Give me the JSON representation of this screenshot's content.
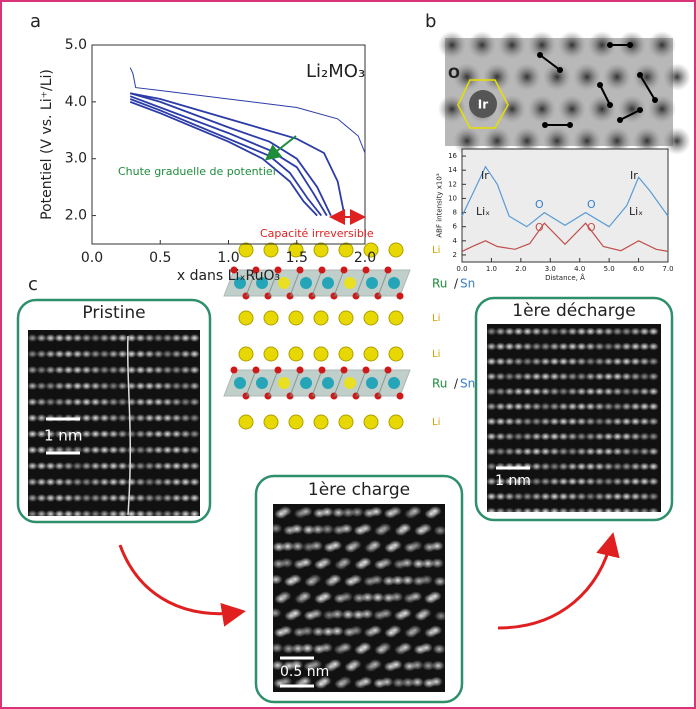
{
  "figure": {
    "panel_labels": [
      "a",
      "b",
      "c"
    ],
    "pristine": {
      "title": "Pristine",
      "scale": "1 nm"
    },
    "charge": {
      "title": "1ère charge",
      "scale": "0.5 nm"
    },
    "discharge": {
      "title": "1ère décharge",
      "scale": "1 nm"
    },
    "structure": {
      "li": "Li",
      "ru": "Ru",
      "slash": "/",
      "sn": "Sn"
    }
  },
  "chart_data": [
    {
      "type": "line",
      "title": "Li₂MO₃",
      "x_label": "x dans LiₓRuO₃",
      "y_label": "Potentiel (V vs. Li⁺/Li)",
      "xlim": [
        0,
        2.0
      ],
      "ylim": [
        1.5,
        5.0
      ],
      "xticks": [
        {
          "value": 0,
          "label": "0.0"
        },
        {
          "value": 0.5,
          "label": "0.5"
        },
        {
          "value": 1,
          "label": "1.0"
        },
        {
          "value": 1.5,
          "label": "1.5"
        },
        {
          "value": 2,
          "label": "2.0"
        }
      ],
      "yticks": [
        {
          "value": 2,
          "label": "2.0"
        },
        {
          "value": 3,
          "label": "3.0"
        },
        {
          "value": 4,
          "label": "4.0"
        },
        {
          "value": 5,
          "label": "5.0"
        }
      ],
      "annotations": [
        "Chute graduelle de potentiel",
        "Capacité irreversible"
      ],
      "series": [
        {
          "color": "#2b3ba8",
          "x": [
            0.28,
            0.3,
            0.32,
            0.5,
            1.0,
            1.5,
            1.8,
            1.95,
            2.0
          ],
          "values": [
            4.6,
            4.5,
            4.25,
            4.2,
            4.05,
            3.9,
            3.7,
            3.4,
            3.1
          ]
        },
        {
          "color": "#2b3ba8",
          "x": [
            0.28,
            0.5,
            1.0,
            1.5,
            1.7,
            1.8,
            1.85
          ],
          "values": [
            4.15,
            4.05,
            3.7,
            3.35,
            3.1,
            2.6,
            2.0
          ]
        },
        {
          "color": "#2b3ba8",
          "x": [
            0.28,
            0.5,
            1.0,
            1.3,
            1.5,
            1.65,
            1.75
          ],
          "values": [
            4.15,
            4.0,
            3.55,
            3.3,
            3.0,
            2.5,
            2.0
          ]
        },
        {
          "color": "#2b3ba8",
          "x": [
            0.28,
            0.5,
            1.0,
            1.3,
            1.5,
            1.62,
            1.72
          ],
          "values": [
            4.1,
            3.9,
            3.45,
            3.15,
            2.85,
            2.4,
            2.0
          ]
        },
        {
          "color": "#2b3ba8",
          "x": [
            0.28,
            0.5,
            1.0,
            1.3,
            1.45,
            1.58,
            1.68
          ],
          "values": [
            4.05,
            3.85,
            3.35,
            3.05,
            2.75,
            2.3,
            2.0
          ]
        },
        {
          "color": "#2b3ba8",
          "x": [
            0.28,
            0.5,
            1.0,
            1.25,
            1.45,
            1.55,
            1.65
          ],
          "values": [
            4.0,
            3.8,
            3.3,
            3.0,
            2.6,
            2.25,
            2.0
          ]
        }
      ]
    },
    {
      "type": "line",
      "x_label": "Distance, Å",
      "y_label": "ABF intensity x10³",
      "xlim": [
        0,
        7.0
      ],
      "ylim": [
        1,
        17
      ],
      "xticks": [
        {
          "value": 0,
          "label": "0.0"
        },
        {
          "value": 1,
          "label": "1.0"
        },
        {
          "value": 2,
          "label": "2.0"
        },
        {
          "value": 3,
          "label": "3.0"
        },
        {
          "value": 4,
          "label": "4.0"
        },
        {
          "value": 5,
          "label": "5.0"
        },
        {
          "value": 6,
          "label": "6.0"
        },
        {
          "value": 7,
          "label": "7.0"
        }
      ],
      "yticks": [
        2,
        4,
        6,
        8,
        10,
        12,
        14,
        16
      ],
      "annotations": [
        "Ir",
        "O",
        "O",
        "Ir",
        "Liₓ",
        "O",
        "O",
        "Liₓ"
      ],
      "series": [
        {
          "color": "#5b9bd5",
          "x": [
            0,
            0.4,
            0.8,
            1.2,
            1.6,
            2.2,
            2.8,
            3.5,
            4.2,
            5.0,
            5.6,
            6.0,
            6.4,
            7.0
          ],
          "values": [
            7.5,
            11,
            14.5,
            12,
            7.5,
            6,
            8,
            6.2,
            8,
            6,
            9,
            13,
            11,
            7.5
          ]
        },
        {
          "color": "#c0504d",
          "x": [
            0,
            0.4,
            0.8,
            1.2,
            1.8,
            2.3,
            2.8,
            3.5,
            4.2,
            4.8,
            5.4,
            6.0,
            6.6,
            7.0
          ],
          "values": [
            2.5,
            3.3,
            4,
            3.2,
            2.8,
            3.6,
            6.5,
            3.5,
            6.5,
            3.2,
            2.6,
            4,
            2.8,
            2.5
          ]
        }
      ]
    }
  ]
}
